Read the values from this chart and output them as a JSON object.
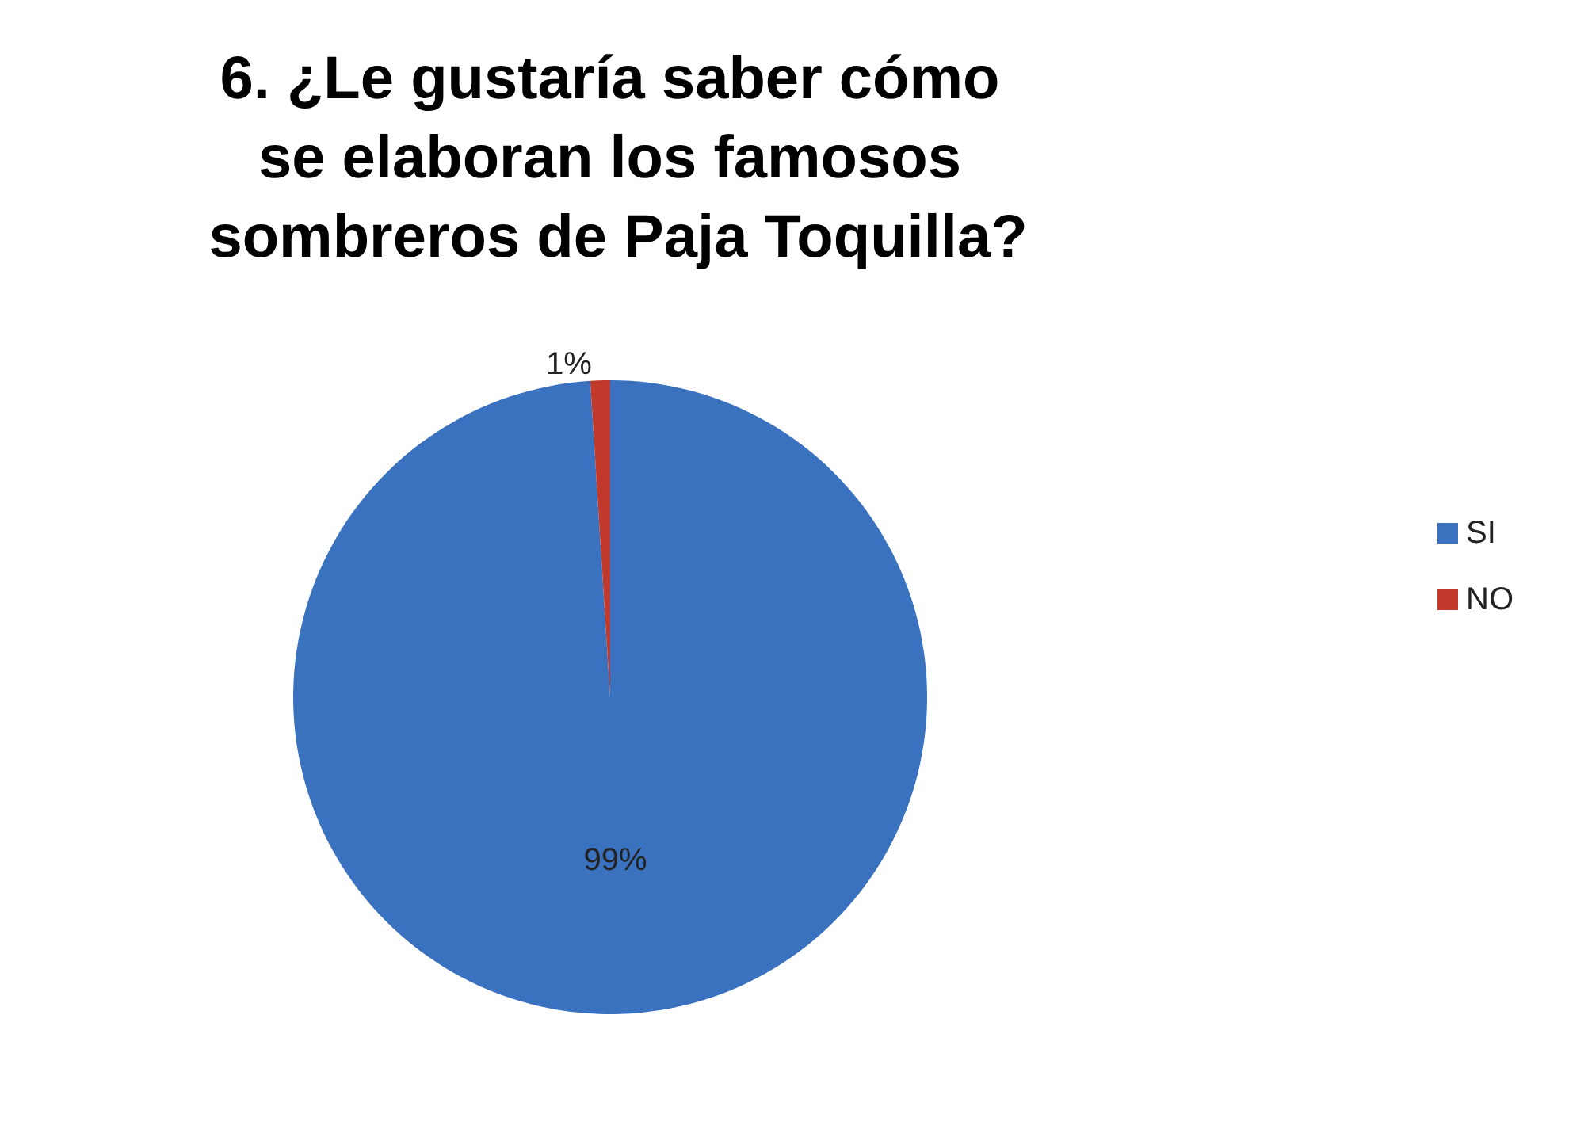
{
  "chart_data": {
    "type": "pie",
    "title": "6. ¿Le gustaría saber cómo se elaboran los famosos sombreros de Paja Toquilla?",
    "categories": [
      "SI",
      "NO"
    ],
    "values": [
      99,
      1
    ],
    "colors": [
      "#3a72c0",
      "#c0392b"
    ],
    "value_labels": [
      "99%",
      "1%"
    ],
    "legend": "right"
  }
}
